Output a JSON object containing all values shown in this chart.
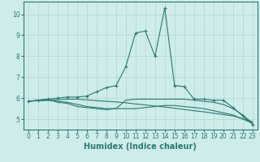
{
  "xlabel": "Humidex (Indice chaleur)",
  "background_color": "#cdecea",
  "grid_color": "#b8d8d5",
  "line_color": "#2a7a72",
  "xlim": [
    -0.5,
    23.5
  ],
  "ylim": [
    4.5,
    10.6
  ],
  "xticks": [
    0,
    1,
    2,
    3,
    4,
    5,
    6,
    7,
    8,
    9,
    10,
    11,
    12,
    13,
    14,
    15,
    16,
    17,
    18,
    19,
    20,
    21,
    22,
    23
  ],
  "yticks": [
    5,
    6,
    7,
    8,
    9,
    10
  ],
  "lines": [
    {
      "x": [
        0,
        1,
        2,
        3,
        4,
        5,
        6,
        7,
        8,
        9,
        10,
        11,
        12,
        13,
        14,
        15,
        16,
        17,
        18,
        19,
        20,
        21,
        22,
        23
      ],
      "y": [
        5.85,
        5.9,
        5.95,
        6.0,
        6.05,
        6.05,
        6.1,
        6.3,
        6.5,
        6.6,
        7.5,
        9.1,
        9.2,
        8.0,
        10.3,
        6.6,
        6.55,
        5.95,
        5.95,
        5.9,
        5.9,
        5.55,
        5.15,
        4.75
      ],
      "marker": "+"
    },
    {
      "x": [
        0,
        1,
        2,
        3,
        4,
        5,
        6,
        7,
        8,
        9,
        10,
        11,
        12,
        13,
        14,
        15,
        16,
        17,
        18,
        19,
        20,
        21,
        22,
        23
      ],
      "y": [
        5.85,
        5.9,
        5.95,
        5.8,
        5.75,
        5.6,
        5.55,
        5.5,
        5.45,
        5.5,
        5.9,
        5.95,
        5.95,
        5.95,
        5.95,
        5.95,
        5.95,
        5.9,
        5.85,
        5.8,
        5.7,
        5.5,
        5.2,
        4.8
      ],
      "marker": null
    },
    {
      "x": [
        0,
        1,
        2,
        3,
        4,
        5,
        6,
        7,
        8,
        9,
        10,
        11,
        12,
        13,
        14,
        15,
        16,
        17,
        18,
        19,
        20,
        21,
        22,
        23
      ],
      "y": [
        5.85,
        5.88,
        5.9,
        5.85,
        5.8,
        5.7,
        5.6,
        5.55,
        5.5,
        5.5,
        5.5,
        5.5,
        5.55,
        5.6,
        5.65,
        5.65,
        5.6,
        5.55,
        5.5,
        5.4,
        5.3,
        5.2,
        5.0,
        4.8
      ],
      "marker": null
    },
    {
      "x": [
        0,
        1,
        2,
        3,
        4,
        5,
        6,
        7,
        8,
        9,
        10,
        11,
        12,
        13,
        14,
        15,
        16,
        17,
        18,
        19,
        20,
        21,
        22,
        23
      ],
      "y": [
        5.85,
        5.88,
        5.9,
        5.92,
        5.95,
        5.95,
        5.92,
        5.88,
        5.85,
        5.82,
        5.78,
        5.72,
        5.68,
        5.62,
        5.58,
        5.52,
        5.46,
        5.4,
        5.35,
        5.28,
        5.22,
        5.15,
        5.02,
        4.88
      ],
      "marker": null
    }
  ],
  "tick_fontsize": 5.5,
  "xlabel_fontsize": 7,
  "xlabel_fontweight": "bold"
}
